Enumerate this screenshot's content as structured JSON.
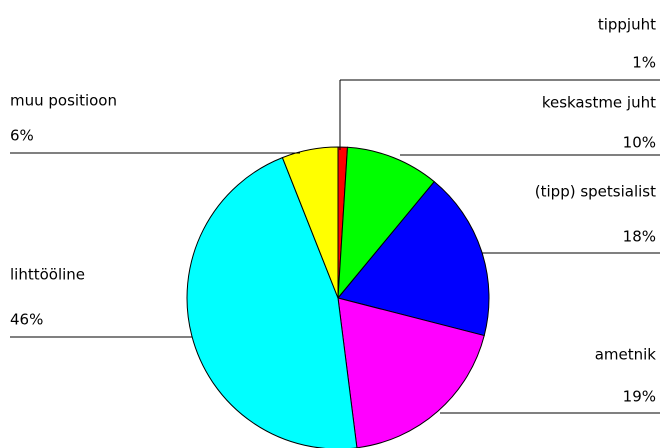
{
  "chart_data": {
    "type": "pie",
    "categories": [
      "tippjuht",
      "keskastme juht",
      "(tipp) spetsialist",
      "ametnik",
      "lihttööline",
      "muu positioon"
    ],
    "values": [
      1,
      10,
      18,
      19,
      46,
      6
    ],
    "value_labels": [
      "1%",
      "10%",
      "18%",
      "19%",
      "46%",
      "6%"
    ],
    "colors": [
      "#ff0000",
      "#00ff00",
      "#0000ff",
      "#ff00ff",
      "#00ffff",
      "#ffff00"
    ]
  }
}
